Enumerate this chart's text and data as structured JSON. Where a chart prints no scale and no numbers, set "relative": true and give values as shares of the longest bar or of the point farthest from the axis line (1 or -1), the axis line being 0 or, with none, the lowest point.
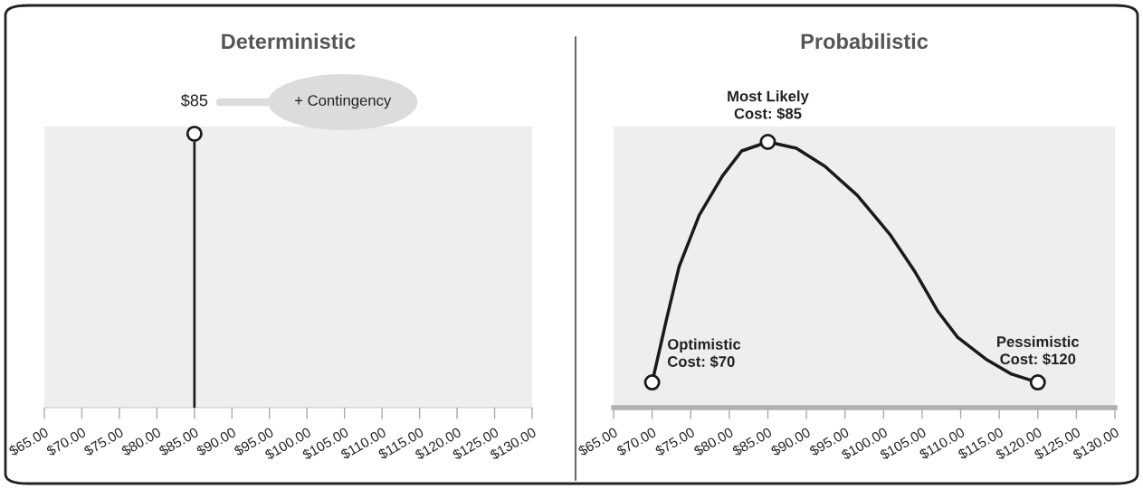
{
  "chart_data": [
    {
      "type": "bar",
      "title": "Deterministic",
      "relative": true,
      "marker": "circle",
      "xlim": [
        65,
        130
      ],
      "xticks": [
        {
          "value": 65,
          "label": "$65.00"
        },
        {
          "value": 70,
          "label": "$70.00"
        },
        {
          "value": 75,
          "label": "$75.00"
        },
        {
          "value": 80,
          "label": "$80.00"
        },
        {
          "value": 85,
          "label": "$85.00"
        },
        {
          "value": 90,
          "label": "$90.00"
        },
        {
          "value": 95,
          "label": "$95.00"
        },
        {
          "value": 100,
          "label": "$100.00"
        },
        {
          "value": 105,
          "label": "$105.00"
        },
        {
          "value": 110,
          "label": "$110.00"
        },
        {
          "value": 115,
          "label": "$115.00"
        },
        {
          "value": 120,
          "label": "$120.00"
        },
        {
          "value": 125,
          "label": "$125.00"
        },
        {
          "value": 130,
          "label": "$130.00"
        }
      ],
      "series": [
        {
          "color": "#1a1a1a",
          "x": [
            85
          ],
          "values": [
            1
          ]
        }
      ],
      "annotations": [
        {
          "text": "$85",
          "x": 85,
          "y": 1
        },
        "+ Contingency"
      ]
    },
    {
      "type": "line",
      "title": "Probabilistic",
      "relative": true,
      "xlim": [
        65,
        130
      ],
      "xticks": [
        {
          "value": 65,
          "label": "$65.00"
        },
        {
          "value": 70,
          "label": "$70.00"
        },
        {
          "value": 75,
          "label": "$75.00"
        },
        {
          "value": 80,
          "label": "$80.00"
        },
        {
          "value": 85,
          "label": "$85.00"
        },
        {
          "value": 90,
          "label": "$90.00"
        },
        {
          "value": 95,
          "label": "$95.00"
        },
        {
          "value": 100,
          "label": "$100.00"
        },
        {
          "value": 105,
          "label": "$105.00"
        },
        {
          "value": 110,
          "label": "$110.00"
        },
        {
          "value": 115,
          "label": "$115.00"
        },
        {
          "value": 120,
          "label": "$120.00"
        },
        {
          "value": 125,
          "label": "$125.00"
        },
        {
          "value": 130,
          "label": "$130.00"
        }
      ],
      "series": [
        {
          "type": "line",
          "marker": "none",
          "color": "#1a1a1a",
          "x": [
            70,
            71.9,
            73.5,
            76.1,
            79.1,
            81.6,
            85,
            88.7,
            92.4,
            96.6,
            100.8,
            104.1,
            107.0,
            109.6,
            113.4,
            116.6,
            120
          ],
          "values": [
            0.095,
            0.337,
            0.531,
            0.724,
            0.871,
            0.966,
            1.0,
            0.976,
            0.908,
            0.799,
            0.653,
            0.51,
            0.364,
            0.265,
            0.18,
            0.126,
            0.095
          ]
        },
        {
          "type": "scatter",
          "marker": "circle",
          "color": "#1a1a1a",
          "x": [
            70,
            85,
            120
          ],
          "values": [
            0.095,
            1.0,
            0.095
          ]
        }
      ],
      "annotations": [
        {
          "text": "Optimistic\nCost: $70",
          "x": 70,
          "y": 0.095
        },
        {
          "text": "Most Likely\nCost: $85",
          "x": 85,
          "y": 1.0
        },
        {
          "text": "Pessimistic\nCost: $120",
          "x": 120,
          "y": 0.095
        }
      ]
    }
  ]
}
